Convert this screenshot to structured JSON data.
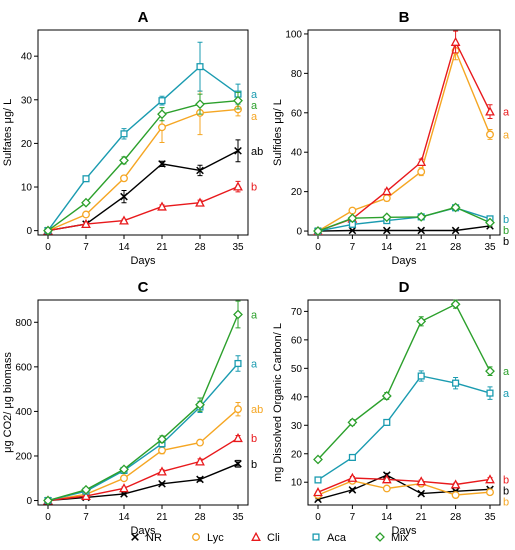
{
  "legend": [
    {
      "name": "NR",
      "color": "#000000",
      "marker": "x"
    },
    {
      "name": "Lyc",
      "color": "#f5a623",
      "marker": "circle"
    },
    {
      "name": "Cli",
      "color": "#e8191c",
      "marker": "triangle"
    },
    {
      "name": "Aca",
      "color": "#1a9bb0",
      "marker": "square"
    },
    {
      "name": "Mix",
      "color": "#2ca02c",
      "marker": "diamond"
    }
  ],
  "chart_data": [
    {
      "type": "line",
      "title": "A",
      "xlabel": "Days",
      "ylabel": "Sulfates μg/ L",
      "x": [
        0,
        7,
        14,
        21,
        28,
        35
      ],
      "xticks": [
        0,
        7,
        14,
        21,
        28,
        35
      ],
      "ylim": [
        -1,
        46
      ],
      "yticks": [
        0,
        10,
        20,
        30,
        40
      ],
      "series": [
        {
          "name": "NR",
          "values": [
            0,
            1.5,
            7.8,
            15.3,
            13.8,
            18.3
          ],
          "err": [
            0,
            0.4,
            1.4,
            0.6,
            1.2,
            2.5
          ],
          "sig": "ab"
        },
        {
          "name": "Lyc",
          "values": [
            0,
            3.7,
            12.0,
            23.7,
            27.0,
            27.8
          ],
          "err": [
            0,
            0.4,
            0.6,
            3.5,
            5.0,
            1.5
          ],
          "sig": "a"
        },
        {
          "name": "Cli",
          "values": [
            0,
            1.5,
            2.3,
            5.5,
            6.4,
            10.1
          ],
          "err": [
            0,
            0.3,
            0.3,
            0.4,
            0.6,
            1.2
          ],
          "sig": "b"
        },
        {
          "name": "Aca",
          "values": [
            0,
            11.9,
            22.2,
            29.8,
            37.6,
            31.3
          ],
          "err": [
            0,
            0.4,
            1.2,
            1.0,
            5.6,
            2.3
          ],
          "sig": "a"
        },
        {
          "name": "Mix",
          "values": [
            0,
            6.4,
            16.1,
            26.7,
            29.0,
            29.8
          ],
          "err": [
            0,
            0.4,
            0.8,
            1.5,
            2.3,
            1.9
          ],
          "sig": "a"
        }
      ]
    },
    {
      "type": "line",
      "title": "B",
      "xlabel": "Days",
      "ylabel": "Sulfides μg/ L",
      "x": [
        0,
        7,
        14,
        21,
        28,
        35
      ],
      "xticks": [
        0,
        7,
        14,
        21,
        28,
        35
      ],
      "ylim": [
        -2,
        102
      ],
      "yticks": [
        0,
        20,
        40,
        60,
        80,
        100
      ],
      "series": [
        {
          "name": "NR",
          "values": [
            0,
            0.3,
            0.3,
            0.3,
            0.3,
            2.6
          ],
          "err": [
            0,
            0.2,
            0.2,
            0.2,
            0.2,
            0.5
          ],
          "sig": "b"
        },
        {
          "name": "Lyc",
          "values": [
            0,
            10.4,
            16.7,
            30.1,
            91.4,
            49.0
          ],
          "err": [
            0,
            1.0,
            1.5,
            2.0,
            4.5,
            2.5
          ],
          "sig": "a"
        },
        {
          "name": "Cli",
          "values": [
            0,
            6.2,
            20.2,
            35.0,
            95.9,
            60.6
          ],
          "err": [
            0,
            0.5,
            1.0,
            1.5,
            5.5,
            3.5
          ],
          "sig": "a"
        },
        {
          "name": "Aca",
          "values": [
            0,
            3.4,
            5.3,
            7.2,
            11.8,
            6.2
          ],
          "err": [
            0,
            0.4,
            0.5,
            0.6,
            1.3,
            0.7
          ],
          "sig": "b"
        },
        {
          "name": "Mix",
          "values": [
            0,
            6.5,
            7.0,
            7.2,
            12.0,
            4.3
          ],
          "err": [
            0,
            0.5,
            0.5,
            0.5,
            1.0,
            0.5
          ],
          "sig": "b"
        }
      ]
    },
    {
      "type": "line",
      "title": "C",
      "xlabel": "Days",
      "ylabel": "μg CO2/ μg biomass",
      "x": [
        0,
        7,
        14,
        21,
        28,
        35
      ],
      "xticks": [
        0,
        7,
        14,
        21,
        28,
        35
      ],
      "ylim": [
        -20,
        900
      ],
      "yticks": [
        0,
        200,
        400,
        600,
        800
      ],
      "series": [
        {
          "name": "NR",
          "values": [
            0,
            14,
            30,
            75,
            95,
            165
          ],
          "err": [
            0,
            3,
            4,
            5,
            8,
            15
          ],
          "sig": "b"
        },
        {
          "name": "Lyc",
          "values": [
            0,
            28,
            100,
            225,
            260,
            410
          ],
          "err": [
            0,
            3,
            6,
            15,
            10,
            30
          ],
          "sig": "ab"
        },
        {
          "name": "Cli",
          "values": [
            0,
            20,
            55,
            130,
            175,
            280
          ],
          "err": [
            0,
            3,
            6,
            8,
            12,
            12
          ],
          "sig": "b"
        },
        {
          "name": "Aca",
          "values": [
            0,
            42,
            135,
            255,
            420,
            615
          ],
          "err": [
            0,
            5,
            8,
            15,
            25,
            35
          ],
          "sig": "a"
        },
        {
          "name": "Mix",
          "values": [
            0,
            48,
            140,
            275,
            430,
            835
          ],
          "err": [
            0,
            5,
            8,
            15,
            30,
            60
          ],
          "sig": "a"
        }
      ]
    },
    {
      "type": "line",
      "title": "D",
      "xlabel": "Days",
      "ylabel": "mg Dissolved Organic Carbon/ L",
      "x": [
        0,
        7,
        14,
        21,
        28,
        35
      ],
      "xticks": [
        0,
        7,
        14,
        21,
        28,
        35
      ],
      "ylim": [
        2,
        74
      ],
      "yticks": [
        10,
        20,
        30,
        40,
        50,
        60,
        70
      ],
      "series": [
        {
          "name": "NR",
          "values": [
            4.0,
            7.3,
            12.5,
            6.0,
            6.8,
            7.5
          ],
          "err": [
            0.3,
            0.4,
            0.6,
            0.4,
            0.4,
            0.4
          ],
          "sig": "b"
        },
        {
          "name": "Lyc",
          "values": [
            5.5,
            10.5,
            7.8,
            9.5,
            5.5,
            6.5
          ],
          "err": [
            0.3,
            0.5,
            0.4,
            0.5,
            0.4,
            0.4
          ],
          "sig": "b"
        },
        {
          "name": "Cli",
          "values": [
            6.5,
            11.5,
            11.0,
            10.3,
            9.2,
            11.0
          ],
          "err": [
            0.3,
            0.5,
            0.5,
            0.5,
            0.5,
            0.6
          ],
          "sig": "b"
        },
        {
          "name": "Aca",
          "values": [
            10.8,
            18.7,
            31.0,
            47.3,
            44.8,
            41.3
          ],
          "err": [
            0.5,
            0.7,
            1.0,
            1.8,
            2.0,
            2.2
          ],
          "sig": "a"
        },
        {
          "name": "Mix",
          "values": [
            18.0,
            31.0,
            40.3,
            66.5,
            72.5,
            49.0
          ],
          "err": [
            0.6,
            1.0,
            1.2,
            1.6,
            1.4,
            1.5
          ],
          "sig": "a"
        }
      ]
    }
  ]
}
